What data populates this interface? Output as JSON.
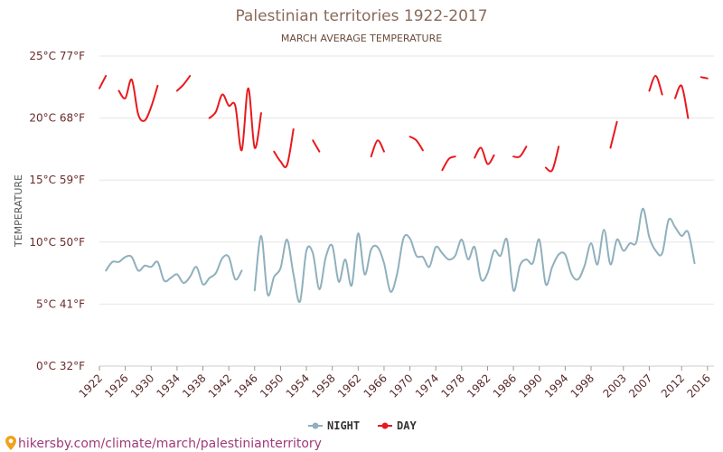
{
  "chart_data": {
    "type": "line",
    "title": "Palestinian territories 1922-2017",
    "subtitle": "MARCH AVERAGE TEMPERATURE",
    "ylabel": "TEMPERATURE",
    "xlabel": "",
    "xlim": [
      1922,
      2017
    ],
    "ylim": [
      0,
      25
    ],
    "y_ticks": [
      {
        "value": 0,
        "label": "0°C 32°F"
      },
      {
        "value": 5,
        "label": "5°C 41°F"
      },
      {
        "value": 10,
        "label": "10°C 50°F"
      },
      {
        "value": 15,
        "label": "15°C 59°F"
      },
      {
        "value": 20,
        "label": "20°C 68°F"
      },
      {
        "value": 25,
        "label": "25°C 77°F"
      }
    ],
    "x_ticks": [
      1922,
      1926,
      1930,
      1934,
      1938,
      1942,
      1946,
      1950,
      1954,
      1958,
      1962,
      1966,
      1970,
      1974,
      1978,
      1982,
      1986,
      1990,
      1994,
      1998,
      2003,
      2007,
      2012,
      2016
    ],
    "grid": true,
    "legend_position": "bottom-center",
    "series": [
      {
        "name": "NIGHT",
        "color": "#8fb0bd",
        "segments": [
          [
            [
              1923,
              7.7
            ],
            [
              1924,
              8.4
            ],
            [
              1925,
              8.4
            ],
            [
              1926,
              8.8
            ],
            [
              1927,
              8.8
            ],
            [
              1928,
              7.7
            ],
            [
              1929,
              8.1
            ],
            [
              1930,
              8.0
            ],
            [
              1931,
              8.4
            ],
            [
              1932,
              6.9
            ],
            [
              1933,
              7.1
            ],
            [
              1934,
              7.4
            ],
            [
              1935,
              6.7
            ],
            [
              1936,
              7.2
            ],
            [
              1937,
              8.0
            ],
            [
              1938,
              6.6
            ],
            [
              1939,
              7.1
            ],
            [
              1940,
              7.5
            ],
            [
              1941,
              8.7
            ],
            [
              1942,
              8.8
            ],
            [
              1943,
              7.0
            ],
            [
              1944,
              7.7
            ]
          ],
          [
            [
              1946,
              6.1
            ],
            [
              1947,
              10.5
            ],
            [
              1948,
              5.8
            ],
            [
              1949,
              7.2
            ],
            [
              1950,
              7.9
            ],
            [
              1951,
              10.2
            ],
            [
              1952,
              7.4
            ],
            [
              1953,
              5.2
            ],
            [
              1954,
              9.3
            ],
            [
              1955,
              9.1
            ],
            [
              1956,
              6.2
            ],
            [
              1957,
              8.8
            ],
            [
              1958,
              9.7
            ],
            [
              1959,
              6.8
            ],
            [
              1960,
              8.6
            ],
            [
              1961,
              6.5
            ],
            [
              1962,
              10.7
            ],
            [
              1963,
              7.4
            ],
            [
              1964,
              9.4
            ],
            [
              1965,
              9.6
            ],
            [
              1966,
              8.3
            ],
            [
              1967,
              6.0
            ],
            [
              1968,
              7.4
            ],
            [
              1969,
              10.3
            ],
            [
              1970,
              10.3
            ],
            [
              1971,
              8.9
            ],
            [
              1972,
              8.8
            ],
            [
              1973,
              8.0
            ],
            [
              1974,
              9.6
            ],
            [
              1975,
              9.1
            ],
            [
              1976,
              8.6
            ],
            [
              1977,
              8.9
            ],
            [
              1978,
              10.2
            ],
            [
              1979,
              8.6
            ],
            [
              1980,
              9.6
            ],
            [
              1981,
              7.0
            ],
            [
              1982,
              7.5
            ],
            [
              1983,
              9.3
            ],
            [
              1984,
              8.9
            ],
            [
              1985,
              10.2
            ],
            [
              1986,
              6.1
            ],
            [
              1987,
              8.1
            ],
            [
              1988,
              8.6
            ],
            [
              1989,
              8.3
            ],
            [
              1990,
              10.2
            ],
            [
              1991,
              6.6
            ],
            [
              1992,
              8.0
            ],
            [
              1993,
              9.0
            ],
            [
              1994,
              9.0
            ],
            [
              1995,
              7.4
            ],
            [
              1996,
              7.0
            ],
            [
              1997,
              8.1
            ],
            [
              1998,
              9.9
            ],
            [
              1999,
              8.2
            ],
            [
              2000,
              11.0
            ],
            [
              2001,
              8.2
            ],
            [
              2002,
              10.2
            ],
            [
              2003,
              9.3
            ],
            [
              2004,
              9.9
            ],
            [
              2005,
              10.0
            ],
            [
              2006,
              12.7
            ],
            [
              2007,
              10.4
            ],
            [
              2008,
              9.3
            ],
            [
              2009,
              9.1
            ],
            [
              2010,
              11.8
            ],
            [
              2011,
              11.2
            ],
            [
              2012,
              10.5
            ],
            [
              2013,
              10.8
            ],
            [
              2014,
              8.3
            ]
          ]
        ]
      },
      {
        "name": "DAY",
        "color": "#e8191e",
        "segments": [
          [
            [
              1922,
              22.4
            ],
            [
              1923,
              23.4
            ]
          ],
          [
            [
              1925,
              22.2
            ],
            [
              1926,
              21.6
            ],
            [
              1927,
              23.1
            ],
            [
              1928,
              20.3
            ],
            [
              1929,
              19.8
            ],
            [
              1930,
              20.9
            ],
            [
              1931,
              22.6
            ]
          ],
          [
            [
              1934,
              22.2
            ],
            [
              1935,
              22.7
            ],
            [
              1936,
              23.4
            ]
          ],
          [
            [
              1939,
              20.0
            ],
            [
              1940,
              20.5
            ],
            [
              1941,
              21.9
            ],
            [
              1942,
              21.0
            ],
            [
              1943,
              21.0
            ],
            [
              1944,
              17.4
            ],
            [
              1945,
              22.4
            ],
            [
              1946,
              17.6
            ],
            [
              1947,
              20.4
            ]
          ],
          [
            [
              1949,
              17.3
            ],
            [
              1950,
              16.5
            ],
            [
              1951,
              16.2
            ],
            [
              1952,
              19.1
            ]
          ],
          [
            [
              1955,
              18.2
            ],
            [
              1956,
              17.3
            ]
          ],
          [
            [
              1964,
              16.9
            ],
            [
              1965,
              18.2
            ],
            [
              1966,
              17.3
            ]
          ],
          [
            [
              1970,
              18.5
            ],
            [
              1971,
              18.2
            ],
            [
              1972,
              17.4
            ]
          ],
          [
            [
              1975,
              15.8
            ],
            [
              1976,
              16.7
            ],
            [
              1977,
              16.9
            ]
          ],
          [
            [
              1980,
              16.8
            ],
            [
              1981,
              17.6
            ],
            [
              1982,
              16.3
            ],
            [
              1983,
              17.0
            ]
          ],
          [
            [
              1986,
              16.9
            ],
            [
              1987,
              16.9
            ],
            [
              1988,
              17.7
            ]
          ],
          [
            [
              1991,
              16.0
            ],
            [
              1992,
              15.8
            ],
            [
              1993,
              17.7
            ]
          ],
          [
            [
              2001,
              17.6
            ],
            [
              2002,
              19.7
            ]
          ],
          [
            [
              2007,
              22.2
            ],
            [
              2008,
              23.4
            ],
            [
              2009,
              21.9
            ]
          ],
          [
            [
              2011,
              21.6
            ],
            [
              2012,
              22.6
            ],
            [
              2013,
              20.0
            ]
          ],
          [
            [
              2015,
              23.3
            ],
            [
              2016,
              23.2
            ]
          ]
        ]
      }
    ]
  },
  "legend": {
    "night_label": "NIGHT",
    "day_label": "DAY"
  },
  "watermark": {
    "text": "hikersby.com/climate/march/palestinianterritory",
    "color": "#a03a7a"
  }
}
